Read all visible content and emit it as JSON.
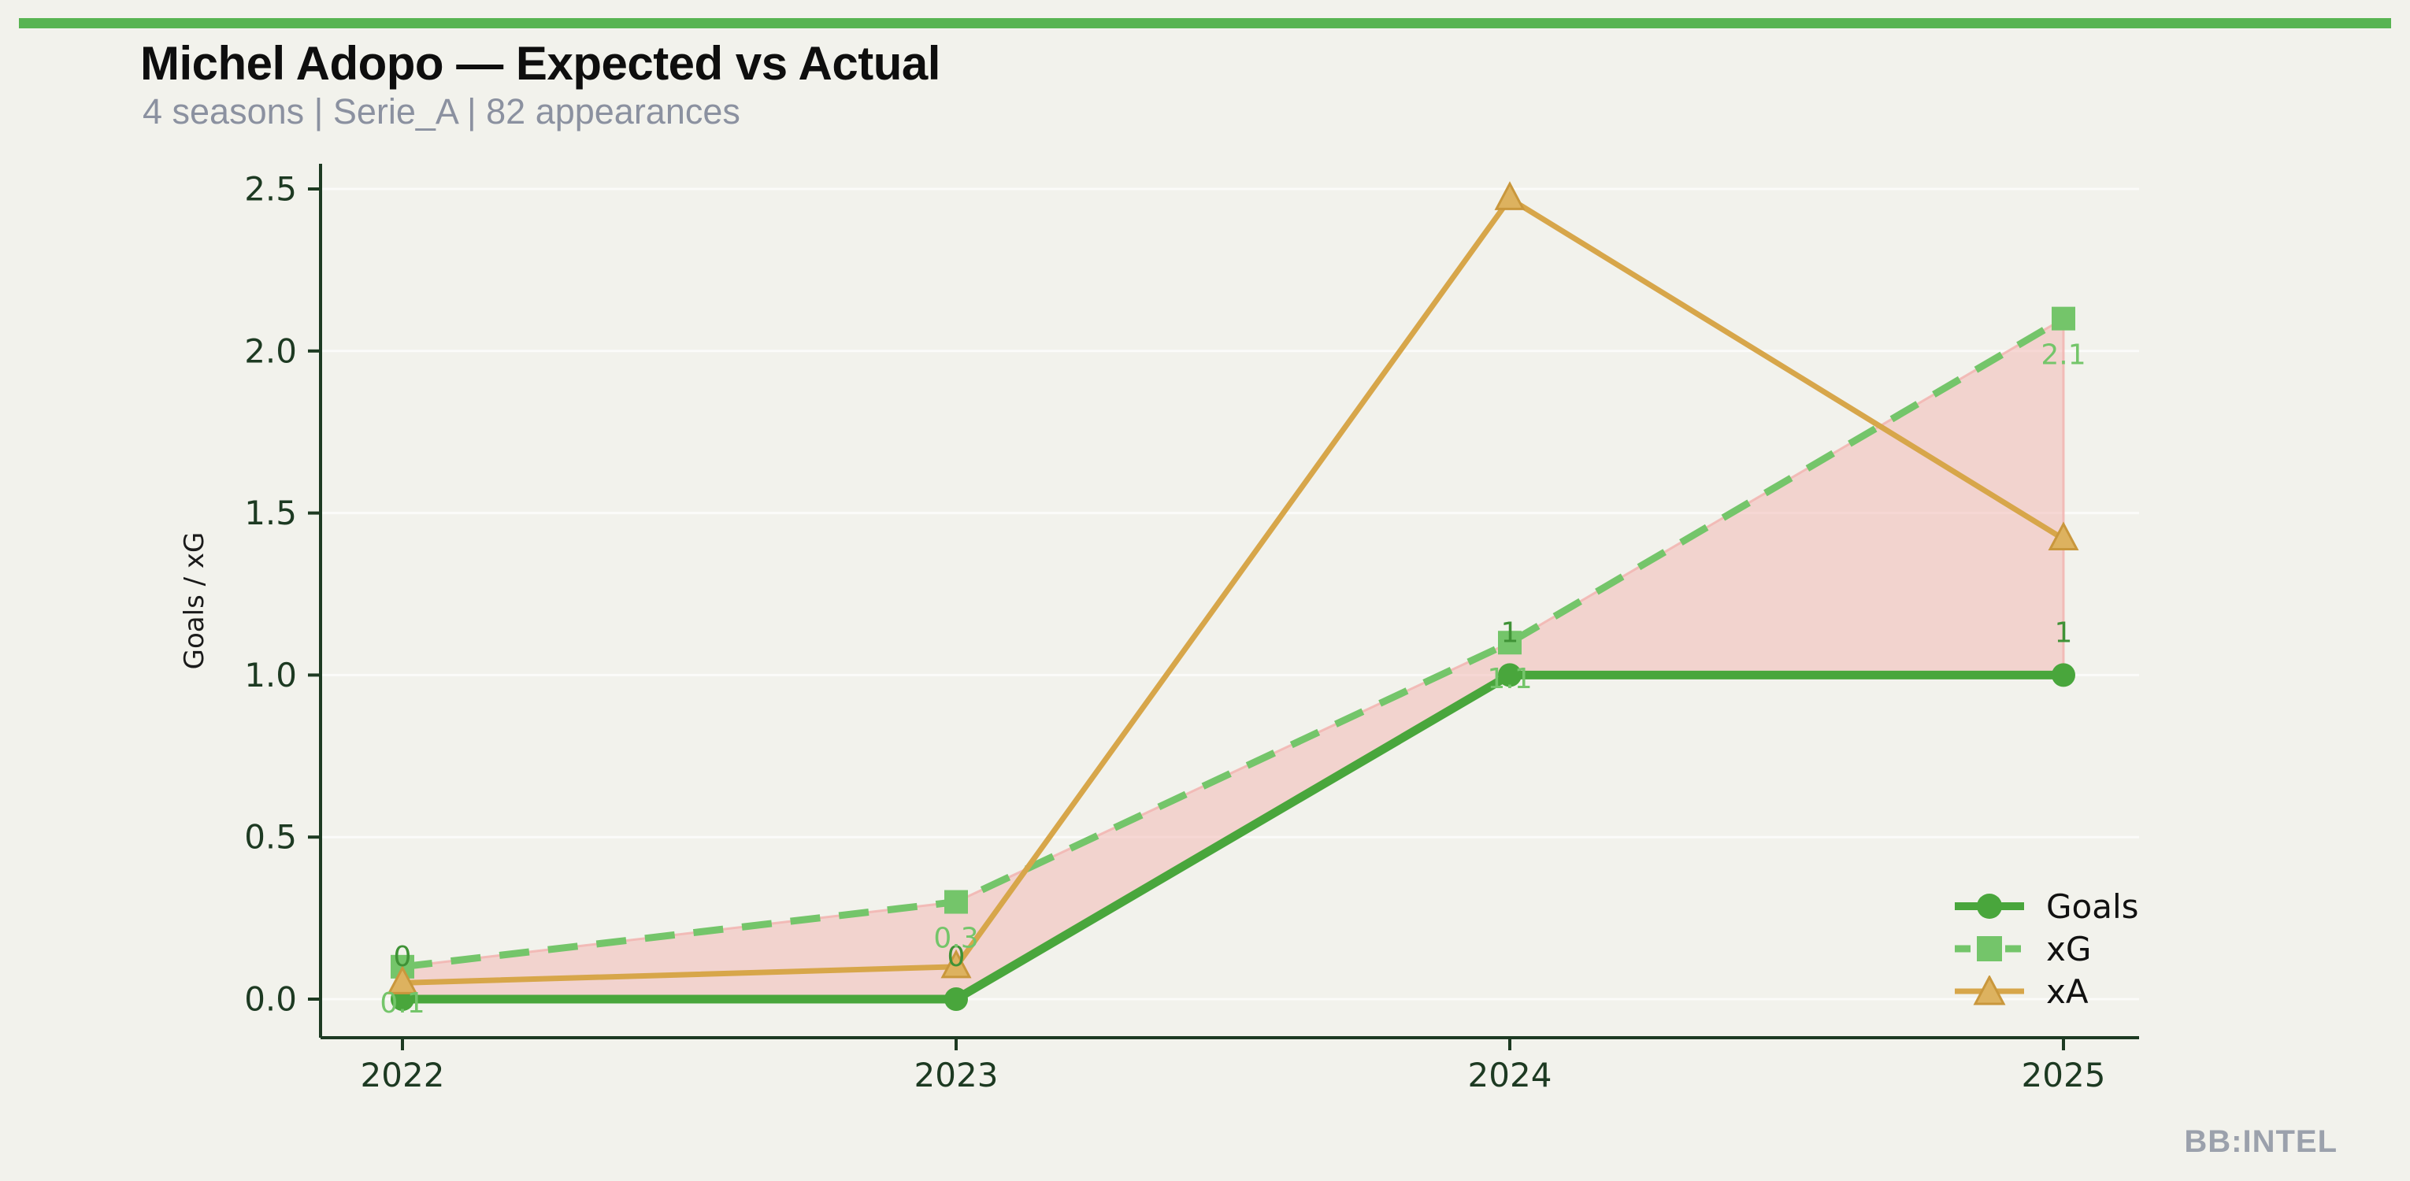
{
  "header": {
    "title": "Michel Adopo — Expected vs Actual",
    "subtitle": "4 seasons | Serie_A | 82 appearances"
  },
  "watermark": "BB:INTEL",
  "colors": {
    "background": "#f2f2ec",
    "top_bar": "#58b452",
    "goals": "#49a63c",
    "goals_label": "#3f9236",
    "xg": "#74c56a",
    "xa": "#d7a64a",
    "xa_marker_fill": "#ddb25f",
    "xa_marker_stroke": "#c9973c",
    "axis": "#1d3a22",
    "ylabel_text": "#1a1a1a",
    "subtitle_text": "#8b91a0",
    "watermark_text": "#9ba1ac",
    "diff_fill": "#f2b4b0",
    "grid": "#ffffff"
  },
  "chart_data": {
    "type": "line",
    "title": "Michel Adopo — Expected vs Actual",
    "x_categories": [
      "2022",
      "2023",
      "2024",
      "2025"
    ],
    "ylabel": "Goals / xG",
    "yticks": [
      "0.0",
      "0.5",
      "1.0",
      "1.5",
      "2.0",
      "2.5"
    ],
    "ylim": [
      -0.12,
      2.6
    ],
    "grid": "faint horizontal gridlines at each 0.5 step",
    "legend_position": "lower right",
    "series": [
      {
        "name": "Goals",
        "marker": "circle",
        "line_style": "solid",
        "color": "#49a63c",
        "values": [
          0,
          0,
          1,
          1
        ],
        "point_labels": [
          "0",
          "0",
          "1",
          "1"
        ]
      },
      {
        "name": "xG",
        "marker": "square",
        "line_style": "dashed",
        "color": "#74c56a",
        "values": [
          0.1,
          0.3,
          1.1,
          2.1
        ],
        "point_labels": [
          "0.1",
          "0.3",
          "1.1",
          "2.1"
        ]
      },
      {
        "name": "xA",
        "marker": "triangle",
        "line_style": "solid",
        "color": "#d7a64a",
        "values": [
          0.05,
          0.1,
          2.47,
          1.42
        ],
        "point_labels": [
          "",
          "",
          "",
          ""
        ]
      }
    ],
    "fill_between": {
      "upper": "xG",
      "lower": "Goals",
      "color": "#f2b4b0"
    }
  }
}
